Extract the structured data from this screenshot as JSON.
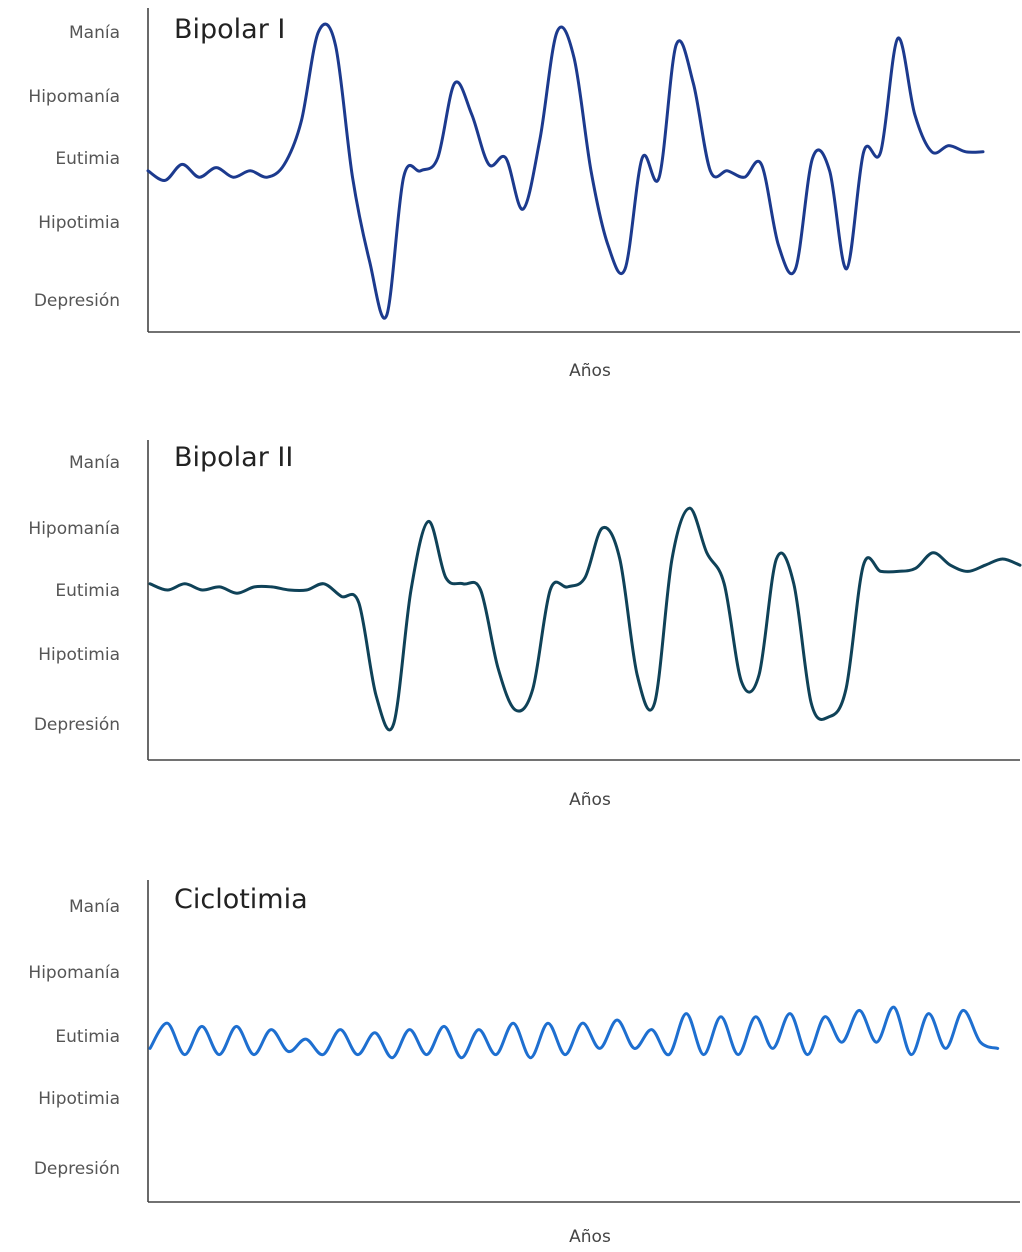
{
  "chart_data": [
    {
      "type": "line",
      "title": "Bipolar I",
      "xlabel": "Años",
      "ylabel": "",
      "y_categories": [
        "Depresión",
        "Hipotimia",
        "Eutimia",
        "Hipomanía",
        "Manía"
      ],
      "ylim": [
        -2,
        2
      ],
      "xlim": [
        0,
        100
      ],
      "grid": false,
      "color": "#1c3a8e",
      "series": [
        {
          "x": [
            0,
            2,
            4,
            6,
            8,
            10,
            12,
            14,
            16,
            18,
            20,
            22,
            24,
            26,
            28,
            30,
            32,
            34,
            36,
            38,
            40,
            42,
            44,
            46,
            48,
            50,
            52,
            54,
            56,
            58,
            60,
            62,
            64,
            66,
            68,
            70,
            72,
            74,
            76,
            78,
            80,
            82,
            84,
            86,
            88,
            90,
            92,
            94,
            96,
            98
          ],
          "values": [
            -0.2,
            -0.35,
            -0.1,
            -0.3,
            -0.15,
            -0.3,
            -0.2,
            -0.3,
            -0.1,
            0.6,
            2.0,
            1.8,
            -0.3,
            -1.5,
            -2.2,
            -0.3,
            -0.2,
            0.0,
            1.2,
            0.7,
            -0.1,
            0.0,
            -0.8,
            0.3,
            2.0,
            1.6,
            -0.2,
            -1.3,
            -1.6,
            0.0,
            -0.3,
            1.8,
            1.2,
            -0.2,
            -0.2,
            -0.3,
            -0.1,
            -1.3,
            -1.6,
            0.0,
            -0.2,
            -1.6,
            0.1,
            0.1,
            1.9,
            0.7,
            0.1,
            0.2,
            0.1,
            0.1
          ]
        }
      ]
    },
    {
      "type": "line",
      "title": "Bipolar II",
      "xlabel": "Años",
      "ylabel": "",
      "y_categories": [
        "Depresión",
        "Hipotimia",
        "Eutimia",
        "Hipomanía",
        "Manía"
      ],
      "ylim": [
        -2,
        2
      ],
      "xlim": [
        0,
        100
      ],
      "grid": false,
      "color": "#0f4258",
      "series": [
        {
          "x": [
            0,
            2,
            4,
            6,
            8,
            10,
            12,
            14,
            16,
            18,
            20,
            22,
            24,
            26,
            28,
            30,
            32,
            34,
            36,
            38,
            40,
            42,
            44,
            46,
            48,
            50,
            52,
            54,
            56,
            58,
            60,
            62,
            64,
            66,
            68,
            70,
            72,
            74,
            76,
            78,
            80,
            82,
            84,
            86,
            88,
            90,
            92,
            94,
            96,
            98,
            100
          ],
          "values": [
            0.1,
            0.0,
            0.1,
            0.0,
            0.05,
            -0.05,
            0.05,
            0.05,
            0.0,
            0.0,
            0.1,
            -0.1,
            -0.2,
            -1.6,
            -2.0,
            0.0,
            1.1,
            0.2,
            0.1,
            0.0,
            -1.2,
            -1.8,
            -1.5,
            0.0,
            0.05,
            0.2,
            1.0,
            0.5,
            -1.3,
            -1.7,
            0.5,
            1.3,
            0.6,
            0.1,
            -1.4,
            -1.3,
            0.5,
            0.1,
            -1.7,
            -1.9,
            -1.5,
            0.4,
            0.3,
            0.3,
            0.35,
            0.6,
            0.4,
            0.3,
            0.4,
            0.5,
            0.4
          ]
        }
      ]
    },
    {
      "type": "line",
      "title": "Ciclotimia",
      "xlabel": "Años",
      "ylabel": "",
      "y_categories": [
        "Depresión",
        "Hipotimia",
        "Eutimia",
        "Hipomanía",
        "Manía"
      ],
      "ylim": [
        -2,
        2
      ],
      "xlim": [
        0,
        100
      ],
      "grid": false,
      "color": "#1e6fd0",
      "series": [
        {
          "x": [
            0,
            2,
            4,
            6,
            8,
            10,
            12,
            14,
            16,
            18,
            20,
            22,
            24,
            26,
            28,
            30,
            32,
            34,
            36,
            38,
            40,
            42,
            44,
            46,
            48,
            50,
            52,
            54,
            56,
            58,
            60,
            62,
            64,
            66,
            68,
            70,
            72,
            74,
            76,
            78,
            80,
            82,
            84,
            86,
            88,
            90,
            92,
            94,
            96,
            98
          ],
          "values": [
            -0.2,
            0.2,
            -0.3,
            0.15,
            -0.3,
            0.15,
            -0.3,
            0.1,
            -0.25,
            -0.05,
            -0.3,
            0.1,
            -0.3,
            0.05,
            -0.35,
            0.1,
            -0.3,
            0.15,
            -0.35,
            0.1,
            -0.3,
            0.2,
            -0.35,
            0.2,
            -0.3,
            0.2,
            -0.2,
            0.25,
            -0.2,
            0.1,
            -0.3,
            0.35,
            -0.3,
            0.3,
            -0.3,
            0.3,
            -0.2,
            0.35,
            -0.3,
            0.3,
            -0.1,
            0.4,
            -0.1,
            0.45,
            -0.3,
            0.35,
            -0.2,
            0.4,
            -0.1,
            -0.2
          ]
        }
      ]
    }
  ]
}
